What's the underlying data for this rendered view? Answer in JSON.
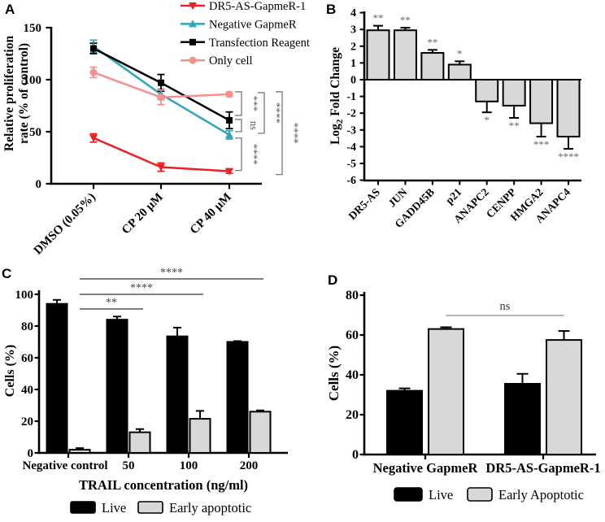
{
  "panels": {
    "a": {
      "label": "A"
    },
    "b": {
      "label": "B"
    },
    "c": {
      "label": "C"
    },
    "d": {
      "label": "D"
    }
  },
  "colors": {
    "red": "#ed2024",
    "teal": "#2fa5b6",
    "black": "#000000",
    "pink": "#f5908f",
    "bar_fill": "#d8d8d8",
    "sig_gray": "#555555"
  },
  "chart_data": [
    {
      "panel": "A",
      "type": "line",
      "ylabel_lines": [
        "Relative proliferation",
        "rate (% of control)"
      ],
      "ylim": [
        0,
        150
      ],
      "yticks": [
        0,
        50,
        100,
        150
      ],
      "categories": [
        "DMSO (0.05%)",
        "CP 20 µM",
        "CP 40 µM"
      ],
      "series": [
        {
          "name": "DR5-AS-GapmeR-1",
          "color": "#ed2024",
          "marker": "triangle-down",
          "values": [
            44,
            16,
            12
          ],
          "errors": [
            4,
            4,
            2
          ]
        },
        {
          "name": "Negative GapmeR",
          "color": "#2fa5b6",
          "marker": "triangle-up",
          "values": [
            132,
            86,
            47
          ],
          "errors": [
            6,
            5,
            4
          ]
        },
        {
          "name": "Transfection Reagent",
          "color": "#000000",
          "marker": "square",
          "values": [
            130,
            97,
            61
          ],
          "errors": [
            5,
            8,
            8
          ]
        },
        {
          "name": "Only cell",
          "color": "#f5908f",
          "marker": "circle",
          "values": [
            107,
            83,
            86
          ],
          "errors": [
            5,
            7,
            2
          ]
        }
      ],
      "sig_brackets": [
        {
          "label": "***",
          "col": 0,
          "from": "Only cell",
          "to": "Transfection Reagent"
        },
        {
          "label": "ns",
          "col": 0,
          "from": "Transfection Reagent",
          "to": "Negative GapmeR"
        },
        {
          "label": "****",
          "col": 0,
          "from": "Negative GapmeR",
          "to": "DR5-AS-GapmeR-1"
        },
        {
          "label": "****",
          "col": 1,
          "from": "Only cell",
          "to": "Negative GapmeR"
        },
        {
          "label": "****",
          "col": 2,
          "from": "Only cell",
          "to": "DR5-AS-GapmeR-1"
        }
      ]
    },
    {
      "panel": "B",
      "type": "bar",
      "ylabel_pre": "Log",
      "ylabel_sub": "2",
      "ylabel_post": " Fold Change",
      "ylim": [
        -6,
        4
      ],
      "ytick_step": 1,
      "categories": [
        "DR5-AS",
        "JUN",
        "GADD45B",
        "p21",
        "ANAPC2",
        "CENPP",
        "HMGA2",
        "ANAPC4"
      ],
      "values": [
        2.95,
        2.95,
        1.6,
        0.9,
        -1.3,
        -1.55,
        -2.6,
        -3.4
      ],
      "errors": [
        0.27,
        0.15,
        0.18,
        0.2,
        0.65,
        0.73,
        0.8,
        0.73
      ],
      "sig": [
        "**",
        "**",
        "**",
        "*",
        "*",
        "**",
        "***",
        "****"
      ]
    },
    {
      "panel": "C",
      "type": "bar",
      "ylabel": "Cells (%)",
      "xlabel": "TRAIL concentration (ng/ml)",
      "ylim": [
        0,
        100
      ],
      "ytick_step": 20,
      "categories": [
        "Negative control",
        "50",
        "100",
        "200"
      ],
      "series": [
        {
          "name": "Live",
          "color": "#000000",
          "values": [
            94,
            84,
            73.5,
            70
          ],
          "errors": [
            2.5,
            2,
            5.5,
            0.5
          ]
        },
        {
          "name": "Early apoptotic",
          "color": "#d8d8d8",
          "values": [
            2,
            13,
            21.5,
            26
          ],
          "errors": [
            1,
            2,
            5,
            0.8
          ]
        }
      ],
      "sig_lines": [
        {
          "label": "**",
          "from": 0,
          "to": 1,
          "level": 1
        },
        {
          "label": "****",
          "from": 0,
          "to": 2,
          "level": 2
        },
        {
          "label": "****",
          "from": 0,
          "to": 3,
          "level": 3
        }
      ],
      "legend": [
        "Live",
        "Early apoptotic"
      ]
    },
    {
      "panel": "D",
      "type": "bar",
      "ylabel": "Cells (%)",
      "ylim": [
        0,
        80
      ],
      "ytick_step": 20,
      "categories": [
        "Negative GapmeR",
        "DR5-AS-GapmeR-1"
      ],
      "series": [
        {
          "name": "Live",
          "color": "#000000",
          "values": [
            32,
            35.5
          ],
          "errors": [
            1.2,
            5
          ]
        },
        {
          "name": "Early Apoptotic",
          "color": "#d8d8d8",
          "values": [
            63,
            57.5
          ],
          "errors": [
            0.9,
            4.5
          ]
        }
      ],
      "sig_lines": [
        {
          "label": "ns",
          "series": "Early Apoptotic",
          "from": 0,
          "to": 1
        }
      ],
      "legend": [
        "Live",
        "Early Apoptotic"
      ]
    }
  ]
}
